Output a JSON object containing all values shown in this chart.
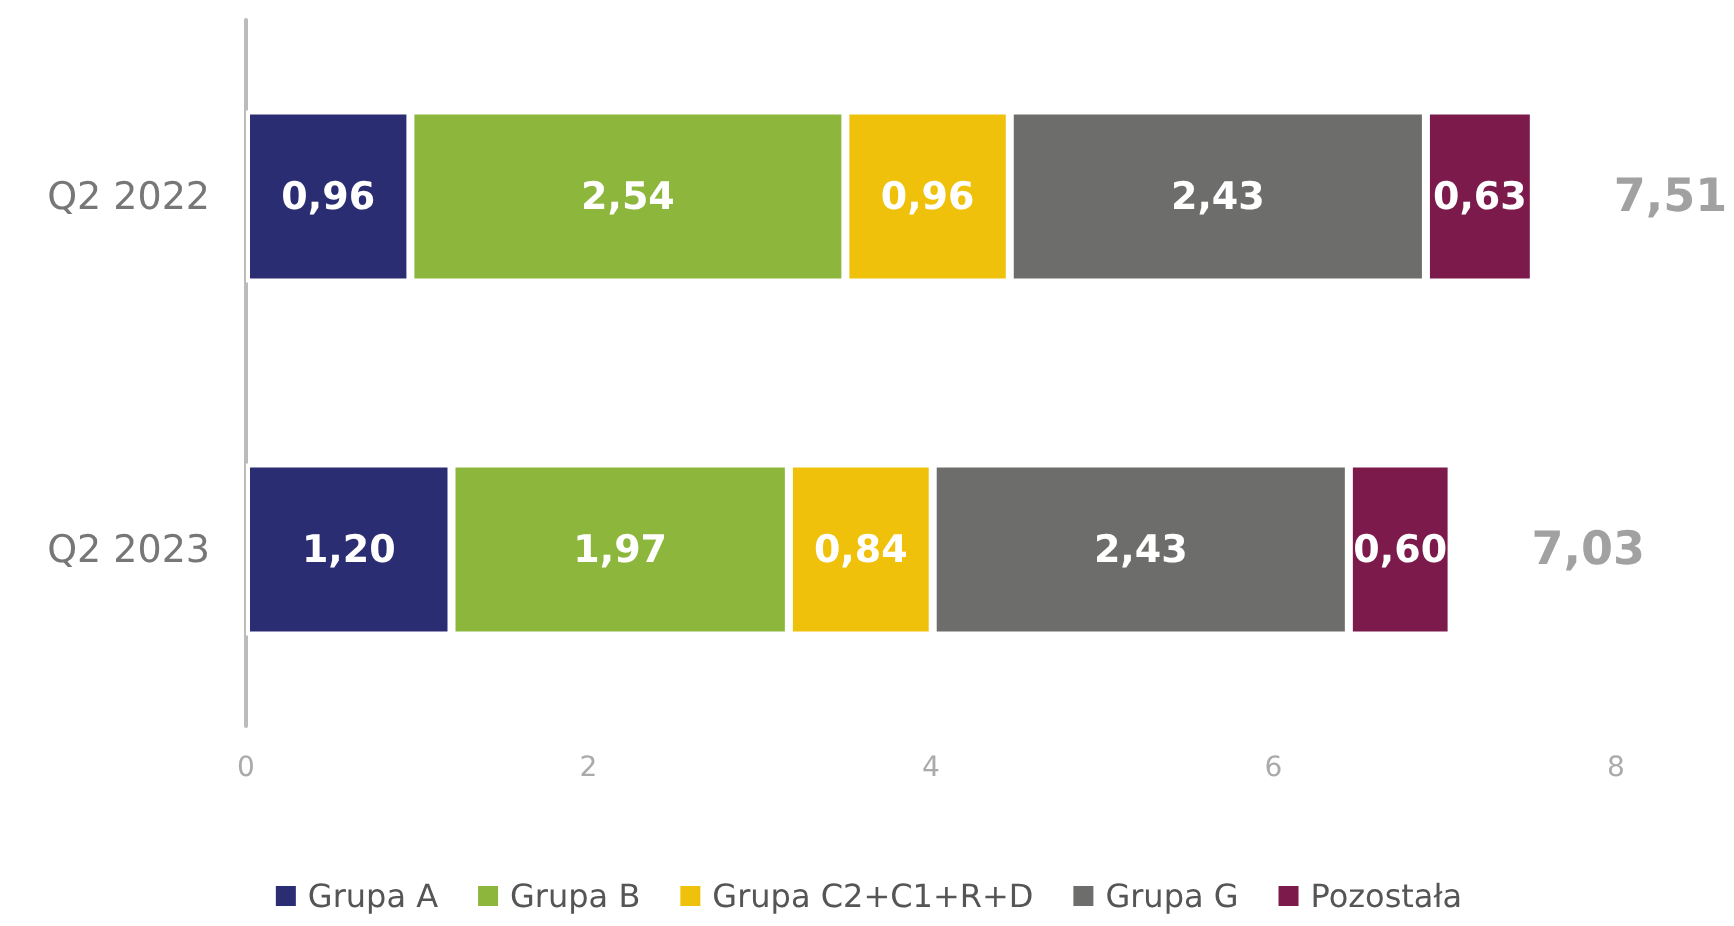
{
  "chart_data": {
    "type": "bar",
    "orientation": "horizontal",
    "stacked": true,
    "categories": [
      "Q2 2022",
      "Q2 2023"
    ],
    "series": [
      {
        "name": "Grupa A",
        "color": "#2b2d72",
        "values": [
          0.96,
          1.2
        ],
        "value_labels": [
          "0,96",
          "1,20"
        ]
      },
      {
        "name": "Grupa B",
        "color": "#8db63c",
        "values": [
          2.54,
          1.97
        ],
        "value_labels": [
          "2,54",
          "1,97"
        ]
      },
      {
        "name": "Grupa C2+C1+R+D",
        "color": "#f0c10a",
        "values": [
          0.96,
          0.84
        ],
        "value_labels": [
          "0,96",
          "0,84"
        ]
      },
      {
        "name": "Grupa G",
        "color": "#6d6d6b",
        "values": [
          2.43,
          2.43
        ],
        "value_labels": [
          "2,43",
          "2,43"
        ]
      },
      {
        "name": "Pozostała",
        "color": "#7b1a4b",
        "values": [
          0.63,
          0.6
        ],
        "value_labels": [
          "0,63",
          "0,60"
        ]
      }
    ],
    "totals": [
      "7,51",
      "7,03"
    ],
    "xlim": [
      0,
      8
    ],
    "xticks": [
      0,
      2,
      4,
      6,
      8
    ],
    "grid": false,
    "legend": "bottom"
  }
}
